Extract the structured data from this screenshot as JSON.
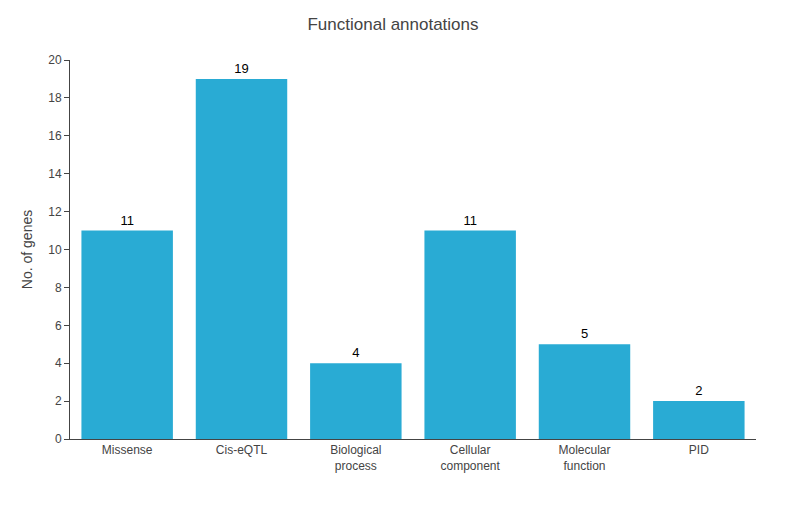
{
  "chart_data": {
    "type": "bar",
    "title": "Functional annotations",
    "categories": [
      "Missense",
      "Cis-eQTL",
      "Biological\nprocess",
      "Cellular\ncomponent",
      "Molecular\nfunction",
      "PID"
    ],
    "values": [
      11,
      19,
      4,
      11,
      5,
      2
    ],
    "color": "#29ABD4",
    "ylabel": "No. of genes",
    "ylim": [
      0,
      20
    ],
    "yticks": [
      0,
      2,
      4,
      6,
      8,
      10,
      12,
      14,
      16,
      18,
      20
    ],
    "grid": false,
    "data_labels": true
  }
}
